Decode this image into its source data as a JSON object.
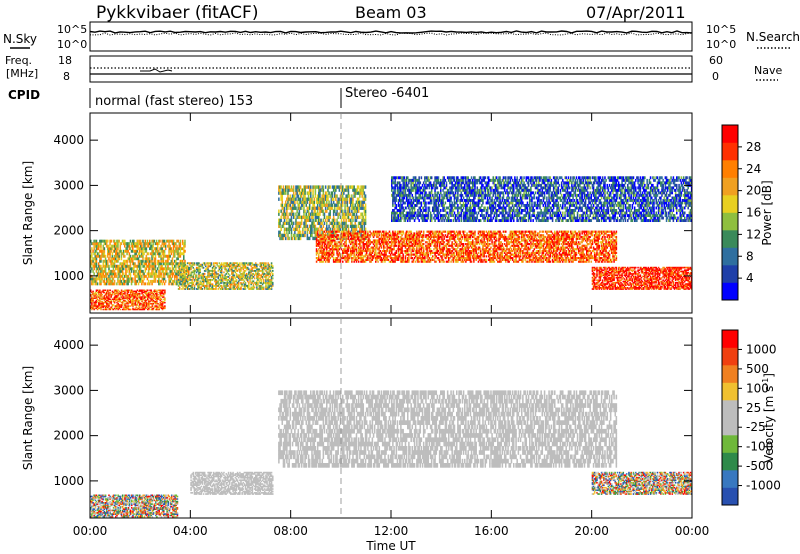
{
  "header": {
    "radar": "Pykkvibaer (fitACF)",
    "beam": "Beam 03",
    "date": "07/Apr/2011"
  },
  "strip1": {
    "left_label": "N.Sky",
    "right_label": "N.Search",
    "left_ticks": [
      "10^5",
      "10^0"
    ],
    "right_ticks": [
      "10^5",
      "10^0"
    ]
  },
  "strip2": {
    "left_label_1": "Freq.",
    "left_label_2": "[MHz]",
    "right_label": "Nave",
    "left_ticks": [
      "18",
      "8"
    ],
    "right_ticks": [
      "60",
      "0"
    ]
  },
  "cpid": {
    "label": "CPID",
    "mode_1": "normal (fast stereo) 153",
    "mode_2": "Stereo -6401"
  },
  "colors": {
    "power_scale": [
      "#0000ff",
      "#1f3fa8",
      "#2f6f9f",
      "#3a8a5a",
      "#8fbf3f",
      "#e8d020",
      "#f0a020",
      "#ff7f00",
      "#ff3000",
      "#ff0000"
    ],
    "velocity_scale": [
      "#2850b0",
      "#3878c0",
      "#2e8a4a",
      "#6fb83a",
      "#bdbdbd",
      "#bdbdbd",
      "#f0c030",
      "#f08020",
      "#f04010",
      "#ff0000"
    ],
    "ground_scatter": "#bdbdbd"
  },
  "chart_data": [
    {
      "type": "heatmap",
      "name": "power",
      "ylabel": "Slant Range [km]",
      "ylim": [
        180,
        4600
      ],
      "y_ticks": [
        "1000",
        "2000",
        "3000",
        "4000"
      ],
      "xlim_hours": [
        0,
        24
      ],
      "colorbar": {
        "label": "Power [dB]",
        "ticks": [
          "4",
          "8",
          "12",
          "16",
          "20",
          "24",
          "28"
        ],
        "range": [
          0,
          30
        ]
      },
      "bands": [
        {
          "t_start": 0.0,
          "t_end": 3.8,
          "r_start": 800,
          "r_end": 1800,
          "level": 0.55
        },
        {
          "t_start": 0.0,
          "t_end": 3.0,
          "r_start": 250,
          "r_end": 700,
          "level": 0.8
        },
        {
          "t_start": 3.5,
          "t_end": 7.3,
          "r_start": 700,
          "r_end": 1300,
          "level": 0.5
        },
        {
          "t_start": 7.5,
          "t_end": 11.0,
          "r_start": 1800,
          "r_end": 3000,
          "level": 0.45
        },
        {
          "t_start": 9.0,
          "t_end": 21.0,
          "r_start": 1300,
          "r_end": 2000,
          "level": 0.8
        },
        {
          "t_start": 20.0,
          "t_end": 24.0,
          "r_start": 700,
          "r_end": 1200,
          "level": 0.9
        },
        {
          "t_start": 12.0,
          "t_end": 24.0,
          "r_start": 2200,
          "r_end": 3200,
          "level": 0.2
        }
      ]
    },
    {
      "type": "heatmap",
      "name": "velocity",
      "ylabel": "Slant Range [km]",
      "xlabel": "Time UT",
      "ylim": [
        180,
        4600
      ],
      "y_ticks": [
        "1000",
        "2000",
        "3000",
        "4000"
      ],
      "x_ticks": [
        "00:00",
        "04:00",
        "08:00",
        "12:00",
        "16:00",
        "20:00",
        "00:00"
      ],
      "xlim_hours": [
        0,
        24
      ],
      "colorbar": {
        "label": "Velocity [m s",
        "label_sup": "-1",
        "label_end": "]",
        "ticks": [
          "1000",
          "500",
          "100",
          "25",
          "-25",
          "-100",
          "-500",
          "-1000"
        ],
        "range": [
          -1000,
          1000
        ]
      },
      "bands": [
        {
          "t_start": 7.5,
          "t_end": 21.0,
          "r_start": 1300,
          "r_end": 3000,
          "kind": "ground"
        },
        {
          "t_start": 4.0,
          "t_end": 7.3,
          "r_start": 700,
          "r_end": 1200,
          "kind": "ground"
        },
        {
          "t_start": 0.0,
          "t_end": 3.5,
          "r_start": 200,
          "r_end": 700,
          "kind": "ionospheric"
        },
        {
          "t_start": 20.0,
          "t_end": 24.0,
          "r_start": 700,
          "r_end": 1200,
          "kind": "ionospheric"
        }
      ]
    }
  ]
}
